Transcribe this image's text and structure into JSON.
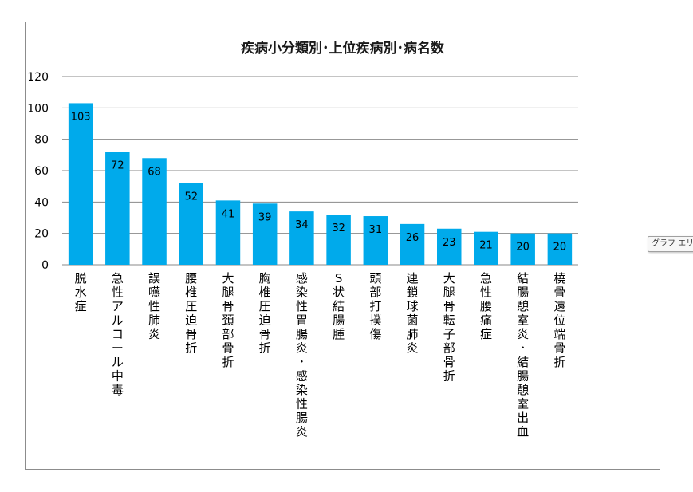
{
  "chart_data": {
    "type": "bar",
    "title": "疾病小分類別･上位疾病別･病名数",
    "categories": [
      "脱水症",
      "急性アルコール中毒",
      "誤嚥性肺炎",
      "腰椎圧迫骨折",
      "大腿骨頚部骨折",
      "胸椎圧迫骨折",
      "感染性胃腸炎･感染性腸炎",
      "S状結腸腫",
      "頭部打撲傷",
      "連鎖球菌肺炎",
      "大腿骨転子部骨折",
      "急性腰痛症",
      "結腸憩室炎･結腸憩室出血",
      "橈骨遠位端骨折"
    ],
    "values": [
      103,
      72,
      68,
      52,
      41,
      39,
      34,
      32,
      31,
      26,
      23,
      21,
      20,
      20
    ],
    "ylim": [
      0,
      120
    ],
    "yticks": [
      0,
      20,
      40,
      60,
      80,
      100,
      120
    ],
    "bar_color": "#00aaeb",
    "grid": true,
    "legend": "none"
  },
  "tooltip": {
    "text": "グラフ エリア"
  }
}
